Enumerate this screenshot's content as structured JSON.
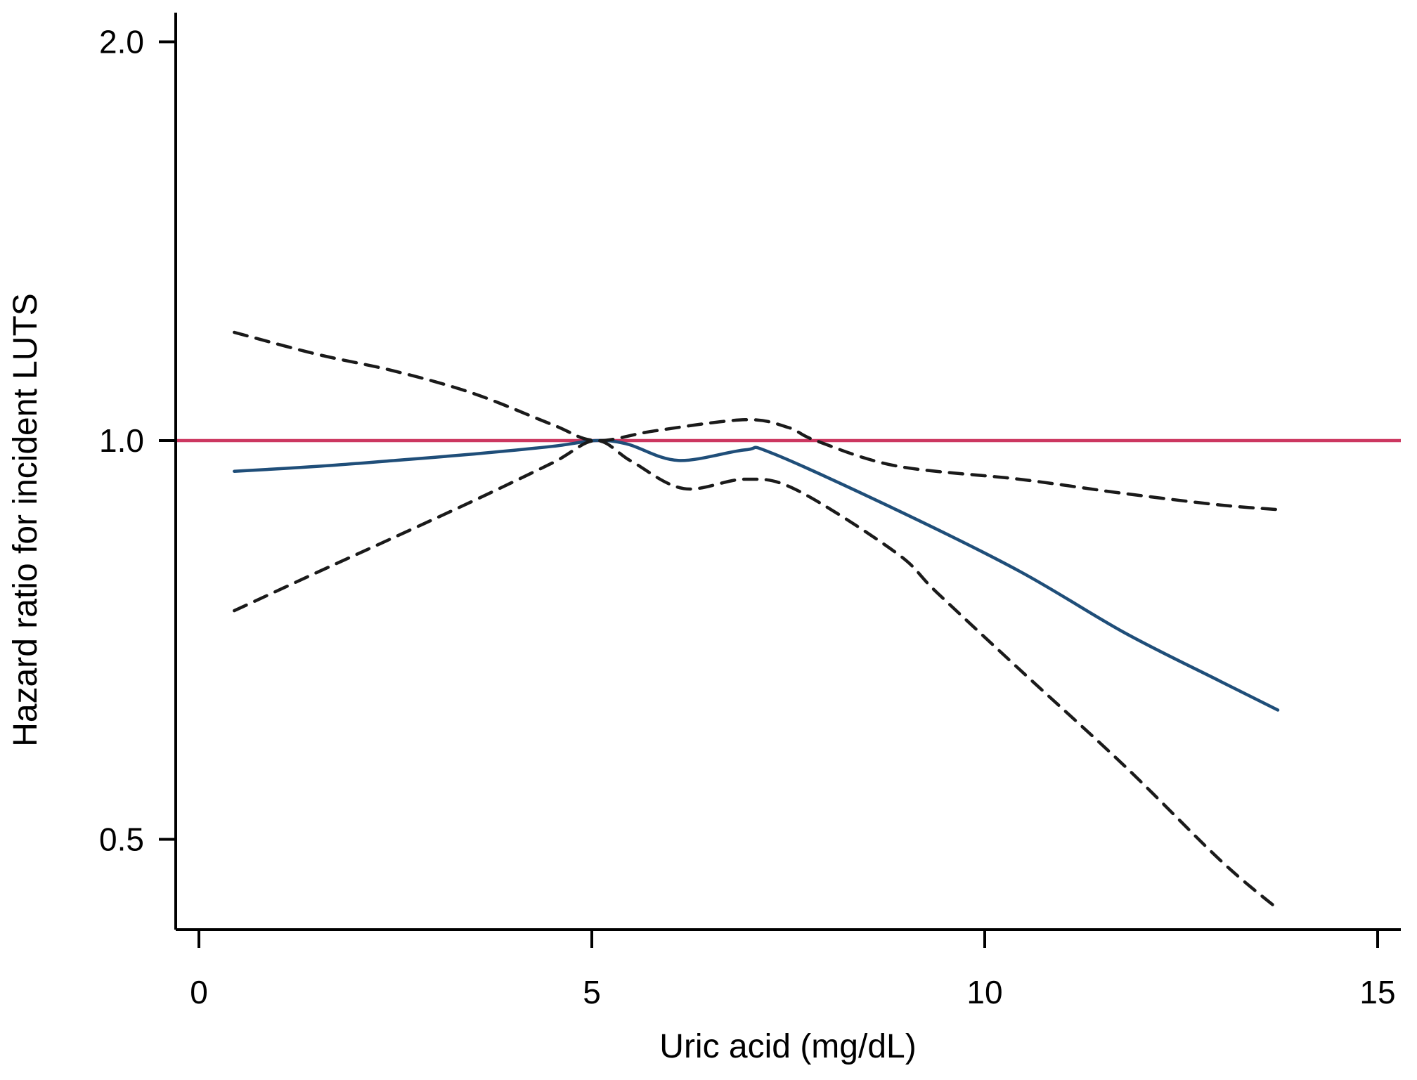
{
  "figure": {
    "background": "#ffffff",
    "y_axis": {
      "title": "Hazard ratio for incident LUTS",
      "ticks": [
        {
          "value": 2.0,
          "label": "2.0"
        },
        {
          "value": 1.0,
          "label": "1.0"
        },
        {
          "value": 0.5,
          "label": "0.5"
        }
      ]
    },
    "x_axis": {
      "title": "Uric acid (mg/dL)",
      "ticks": [
        {
          "value": 0,
          "label": "0"
        },
        {
          "value": 5,
          "label": "5"
        },
        {
          "value": 10,
          "label": "10"
        },
        {
          "value": 15,
          "label": "15"
        }
      ]
    },
    "colors": {
      "estimate_line": "#1f4e79",
      "band_line": "#1a1a1a",
      "reference_line": "#cc3760",
      "axis": "#000000"
    }
  },
  "chart_data": {
    "type": "line",
    "title": "",
    "xlabel": "Uric acid (mg/dL)",
    "ylabel": "Hazard ratio for incident LUTS",
    "x_ticks": [
      0,
      5,
      10,
      15
    ],
    "x_range": [
      0,
      15.3
    ],
    "y_scale": "log",
    "y_ticks": [
      0.5,
      1.0,
      2.0
    ],
    "y_range": [
      0.41,
      2.1
    ],
    "grid": false,
    "legend": "none",
    "reference_line_y": 1.0,
    "series": [
      {
        "name": "estimate",
        "style": "solid",
        "color": "#1f4e79",
        "points": [
          [
            0.45,
            0.948
          ],
          [
            1.5,
            0.956
          ],
          [
            2.5,
            0.966
          ],
          [
            3.5,
            0.977
          ],
          [
            4.5,
            0.99
          ],
          [
            5.05,
            1.0
          ],
          [
            5.45,
            0.994
          ],
          [
            6.1,
            0.966
          ],
          [
            6.95,
            0.984
          ],
          [
            7.3,
            0.978
          ],
          [
            8.87,
            0.887
          ],
          [
            10.44,
            0.797
          ],
          [
            11.78,
            0.716
          ],
          [
            13.0,
            0.658
          ],
          [
            13.73,
            0.626
          ]
        ]
      },
      {
        "name": "upper_band",
        "style": "dashed",
        "color": "#1a1a1a",
        "points": [
          [
            0.45,
            1.207
          ],
          [
            1.5,
            1.162
          ],
          [
            2.5,
            1.128
          ],
          [
            3.5,
            1.085
          ],
          [
            4.5,
            1.028
          ],
          [
            5.05,
            1.0
          ],
          [
            5.8,
            1.017
          ],
          [
            6.95,
            1.037
          ],
          [
            7.5,
            1.023
          ],
          [
            7.85,
            1.0
          ],
          [
            8.87,
            0.957
          ],
          [
            10.44,
            0.935
          ],
          [
            11.78,
            0.912
          ],
          [
            13.0,
            0.894
          ],
          [
            13.73,
            0.887
          ]
        ]
      },
      {
        "name": "lower_band",
        "style": "dashed",
        "color": "#1a1a1a",
        "points": [
          [
            0.45,
            0.744
          ],
          [
            1.5,
            0.795
          ],
          [
            2.5,
            0.846
          ],
          [
            3.5,
            0.901
          ],
          [
            4.5,
            0.962
          ],
          [
            5.05,
            1.0
          ],
          [
            5.5,
            0.965
          ],
          [
            6.17,
            0.92
          ],
          [
            6.95,
            0.935
          ],
          [
            7.6,
            0.918
          ],
          [
            8.87,
            0.823
          ],
          [
            9.39,
            0.768
          ],
          [
            10.44,
            0.672
          ],
          [
            11.78,
            0.568
          ],
          [
            13.0,
            0.482
          ],
          [
            13.73,
            0.443
          ]
        ]
      }
    ]
  }
}
